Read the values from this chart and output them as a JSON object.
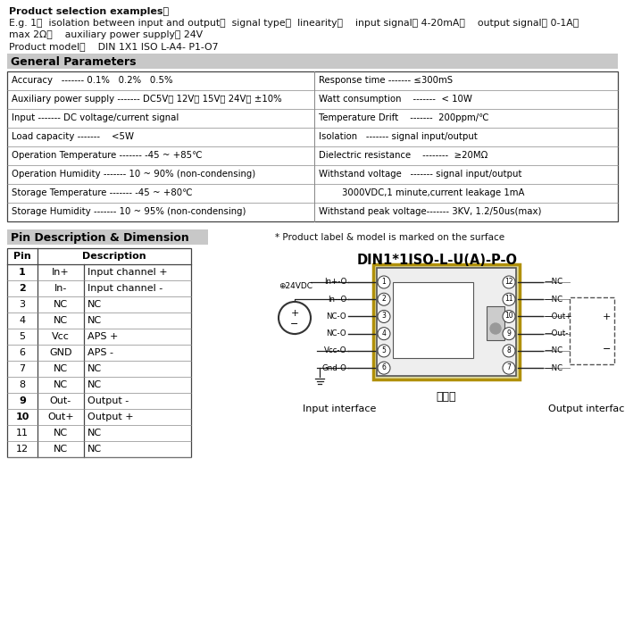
{
  "title_bold": "Product selection examples：",
  "title_line1": "E.g. 1：  isolation between input and output；  signal type；  linearity；    input signal： 4-20mA；    output signal： 0-1A，",
  "title_line2": "max 2Ω；    auxiliary power supply： 24V",
  "title_line3": "Product model：    DIN 1X1 ISO L-A4- P1-O7",
  "general_params_title": "General Parameters",
  "table_left": [
    "Accuracy   ------- 0.1%   0.2%   0.5%",
    "Auxiliary power supply ------- DC5V、 12V、 15V、 24V、 ±10%",
    "Input ------- DC voltage/current signal",
    "Load capacity -------    <5W",
    "Operation Temperature ------- -45 ~ +85℃",
    "Operation Humidity ------- 10 ~ 90% (non-condensing)",
    "Storage Temperature ------- -45 ~ +80℃",
    "Storage Humidity ------- 10 ~ 95% (non-condensing)"
  ],
  "table_right": [
    "Response time ------- ≤300mS",
    "Watt consumption    -------  < 10W",
    "Temperature Drift    -------  200ppm/℃",
    "Isolation   ------- signal input/output",
    "Dielectric resistance    --------  ≥20MΩ",
    "Withstand voltage   ------- signal input/output",
    "        3000VDC,1 minute,current leakage 1mA",
    "Withstand peak voltage------- 3KV, 1.2/50us(max)"
  ],
  "pin_title": "Pin Description & Dimension",
  "pin_note": "* Product label & model is marked on the surface",
  "pin_rows": [
    [
      "1",
      "In+",
      "Input channel +"
    ],
    [
      "2",
      "In-",
      "Input channel -"
    ],
    [
      "3",
      "NC",
      "NC"
    ],
    [
      "4",
      "NC",
      "NC"
    ],
    [
      "5",
      "Vcc",
      "APS +"
    ],
    [
      "6",
      "GND",
      "APS -"
    ],
    [
      "7",
      "NC",
      "NC"
    ],
    [
      "8",
      "NC",
      "NC"
    ],
    [
      "9",
      "Out-",
      "Output -"
    ],
    [
      "10",
      "Out+",
      "Output +"
    ],
    [
      "11",
      "NC",
      "NC"
    ],
    [
      "12",
      "NC",
      "NC"
    ]
  ],
  "bold_pins": [
    "1",
    "2",
    "9",
    "10"
  ],
  "diagram_title": "DIN1*1ISO-L-U(A)-P-O",
  "diagram_label": "顶视图",
  "input_label": "Input interface",
  "output_label": "Output interface",
  "pwr_label": "⊕24VDC",
  "left_pin_labels": [
    "In+",
    "In-",
    "NC",
    "NC",
    "Vcc",
    "Gnd"
  ],
  "right_pin_labels": [
    "NC",
    "NC",
    "Out+",
    "Out-",
    "NC",
    "NC"
  ],
  "right_pin_nums": [
    "12",
    "11",
    "10",
    "9",
    "8",
    "7"
  ],
  "left_pin_nums": [
    "1",
    "2",
    "3",
    "4",
    "5",
    "6"
  ],
  "bg_color": "#ffffff"
}
